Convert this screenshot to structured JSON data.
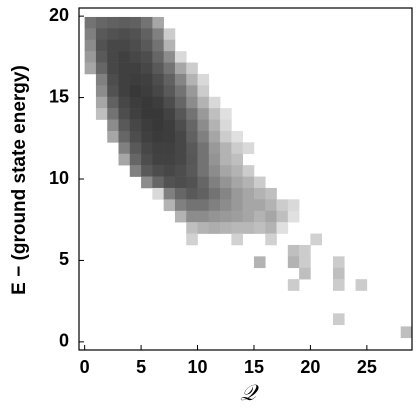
{
  "chart_data": {
    "type": "heatmap",
    "xlabel": "𝒬",
    "ylabel": "E − (ground state energy)",
    "xlim": [
      -0.5,
      29
    ],
    "ylim": [
      -0.5,
      20.5
    ],
    "xticks": [
      0,
      5,
      10,
      15,
      20,
      25
    ],
    "yticks": [
      0,
      5,
      10,
      15,
      20
    ],
    "cell_width": 1,
    "cell_height": 0.7,
    "rows": [
      {
        "y": 19.6,
        "x": [
          0.5,
          1.5,
          2.5,
          3.5,
          4.5,
          5.5,
          6.5
        ],
        "values": [
          0.55,
          0.6,
          0.62,
          0.63,
          0.62,
          0.55,
          0.35
        ]
      },
      {
        "y": 18.9,
        "x": [
          0.5,
          1.5,
          2.5,
          3.5,
          4.5,
          5.5,
          6.5,
          7.5
        ],
        "values": [
          0.5,
          0.65,
          0.68,
          0.7,
          0.68,
          0.62,
          0.5,
          0.2
        ]
      },
      {
        "y": 18.2,
        "x": [
          0.5,
          1.5,
          2.5,
          3.5,
          4.5,
          5.5,
          6.5,
          7.5
        ],
        "values": [
          0.45,
          0.68,
          0.72,
          0.72,
          0.7,
          0.65,
          0.55,
          0.3
        ]
      },
      {
        "y": 17.5,
        "x": [
          0.5,
          1.5,
          2.5,
          3.5,
          4.5,
          5.5,
          6.5,
          7.5,
          8.5
        ],
        "values": [
          0.4,
          0.65,
          0.72,
          0.75,
          0.72,
          0.7,
          0.6,
          0.45,
          0.15
        ]
      },
      {
        "y": 16.8,
        "x": [
          0.5,
          1.5,
          2.5,
          3.5,
          4.5,
          5.5,
          6.5,
          7.5,
          8.5,
          9.5
        ],
        "values": [
          0.35,
          0.6,
          0.72,
          0.75,
          0.75,
          0.72,
          0.65,
          0.55,
          0.35,
          0.2
        ]
      },
      {
        "y": 16.1,
        "x": [
          1.5,
          2.5,
          3.5,
          4.5,
          5.5,
          6.5,
          7.5,
          8.5,
          9.5,
          10.5
        ],
        "values": [
          0.5,
          0.7,
          0.75,
          0.76,
          0.75,
          0.7,
          0.62,
          0.48,
          0.3,
          0.15
        ]
      },
      {
        "y": 15.4,
        "x": [
          1.5,
          2.5,
          3.5,
          4.5,
          5.5,
          6.5,
          7.5,
          8.5,
          9.5,
          10.5
        ],
        "values": [
          0.45,
          0.68,
          0.75,
          0.78,
          0.76,
          0.72,
          0.65,
          0.55,
          0.4,
          0.2
        ]
      },
      {
        "y": 14.7,
        "x": [
          1.5,
          2.5,
          3.5,
          4.5,
          5.5,
          6.5,
          7.5,
          8.5,
          9.5,
          10.5,
          11.5
        ],
        "values": [
          0.35,
          0.62,
          0.72,
          0.76,
          0.78,
          0.76,
          0.7,
          0.6,
          0.45,
          0.3,
          0.15
        ]
      },
      {
        "y": 14.0,
        "x": [
          1.5,
          2.5,
          3.5,
          4.5,
          5.5,
          6.5,
          7.5,
          8.5,
          9.5,
          10.5,
          11.5,
          12.5
        ],
        "values": [
          0.25,
          0.55,
          0.7,
          0.75,
          0.78,
          0.78,
          0.74,
          0.66,
          0.55,
          0.4,
          0.25,
          0.12
        ]
      },
      {
        "y": 13.3,
        "x": [
          2.5,
          3.5,
          4.5,
          5.5,
          6.5,
          7.5,
          8.5,
          9.5,
          10.5,
          11.5,
          12.5
        ],
        "values": [
          0.45,
          0.65,
          0.72,
          0.76,
          0.78,
          0.76,
          0.7,
          0.6,
          0.45,
          0.3,
          0.15
        ]
      },
      {
        "y": 12.6,
        "x": [
          2.5,
          3.5,
          4.5,
          5.5,
          6.5,
          7.5,
          8.5,
          9.5,
          10.5,
          11.5,
          12.5,
          13.5
        ],
        "values": [
          0.35,
          0.6,
          0.7,
          0.75,
          0.77,
          0.76,
          0.72,
          0.62,
          0.5,
          0.35,
          0.2,
          0.12
        ]
      },
      {
        "y": 11.9,
        "x": [
          3.5,
          4.5,
          5.5,
          6.5,
          7.5,
          8.5,
          9.5,
          10.5,
          11.5,
          12.5,
          13.5,
          14.5
        ],
        "values": [
          0.5,
          0.65,
          0.72,
          0.75,
          0.75,
          0.72,
          0.65,
          0.55,
          0.4,
          0.3,
          0.2,
          0.15
        ]
      },
      {
        "y": 11.2,
        "x": [
          3.5,
          4.5,
          5.5,
          6.5,
          7.5,
          8.5,
          9.5,
          10.5,
          11.5,
          12.5,
          13.5
        ],
        "values": [
          0.35,
          0.6,
          0.7,
          0.74,
          0.74,
          0.72,
          0.66,
          0.55,
          0.42,
          0.3,
          0.25
        ]
      },
      {
        "y": 10.5,
        "x": [
          4.5,
          5.5,
          6.5,
          7.5,
          8.5,
          9.5,
          10.5,
          11.5,
          12.5,
          13.5,
          14.5
        ],
        "values": [
          0.5,
          0.65,
          0.7,
          0.72,
          0.7,
          0.65,
          0.55,
          0.45,
          0.35,
          0.3,
          0.2
        ]
      },
      {
        "y": 9.8,
        "x": [
          5.5,
          6.5,
          7.5,
          8.5,
          9.5,
          10.5,
          11.5,
          12.5,
          13.5,
          14.5,
          15.5
        ],
        "values": [
          0.45,
          0.6,
          0.68,
          0.7,
          0.68,
          0.6,
          0.5,
          0.42,
          0.35,
          0.3,
          0.2
        ]
      },
      {
        "y": 9.1,
        "x": [
          6.5,
          7.5,
          8.5,
          9.5,
          10.5,
          11.5,
          12.5,
          13.5,
          14.5,
          15.5,
          16.5
        ],
        "values": [
          0.15,
          0.5,
          0.6,
          0.65,
          0.62,
          0.55,
          0.48,
          0.4,
          0.35,
          0.3,
          0.25
        ]
      },
      {
        "y": 8.4,
        "x": [
          7.5,
          8.5,
          9.5,
          10.5,
          11.5,
          12.5,
          13.5,
          14.5,
          15.5,
          16.5,
          17.5,
          18.5
        ],
        "values": [
          0.3,
          0.5,
          0.55,
          0.55,
          0.5,
          0.45,
          0.4,
          0.35,
          0.35,
          0.3,
          0.2,
          0.15
        ]
      },
      {
        "y": 7.7,
        "x": [
          8.5,
          9.5,
          10.5,
          11.5,
          12.5,
          13.5,
          14.5,
          15.5,
          16.5,
          17.5,
          18.5
        ],
        "values": [
          0.3,
          0.45,
          0.45,
          0.42,
          0.4,
          0.38,
          0.35,
          0.3,
          0.35,
          0.25,
          0.12
        ]
      },
      {
        "y": 7.0,
        "x": [
          9.5,
          10.5,
          11.5,
          12.5,
          13.5,
          14.5,
          15.5,
          16.5,
          17.5
        ],
        "values": [
          0.25,
          0.3,
          0.32,
          0.3,
          0.28,
          0.28,
          0.25,
          0.3,
          0.12
        ]
      },
      {
        "y": 6.3,
        "x": [
          9.5,
          13.5,
          16.5,
          20.5
        ],
        "values": [
          0.18,
          0.18,
          0.18,
          0.18
        ]
      },
      {
        "y": 5.6,
        "x": [
          18.5,
          19.5
        ],
        "values": [
          0.25,
          0.2
        ]
      },
      {
        "y": 4.9,
        "x": [
          15.5,
          18.5,
          19.5,
          22.5
        ],
        "values": [
          0.3,
          0.3,
          0.2,
          0.2
        ]
      },
      {
        "y": 4.2,
        "x": [
          19.5,
          22.5
        ],
        "values": [
          0.25,
          0.25
        ]
      },
      {
        "y": 3.5,
        "x": [
          18.5,
          22.5,
          24.5
        ],
        "values": [
          0.2,
          0.2,
          0.2
        ]
      },
      {
        "y": 1.4,
        "x": [
          22.5
        ],
        "values": [
          0.2
        ]
      },
      {
        "y": 0.6,
        "x": [
          28.5
        ],
        "values": [
          0.25
        ]
      }
    ]
  }
}
